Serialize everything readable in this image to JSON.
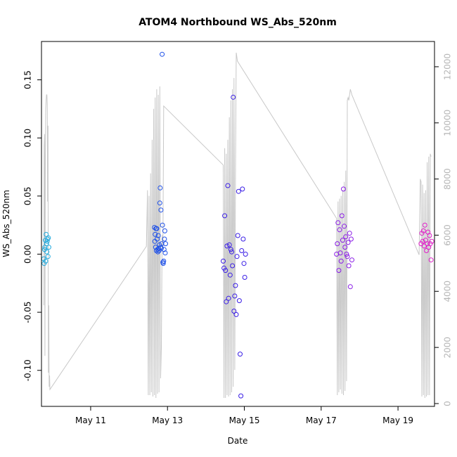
{
  "chart_data": {
    "type": "scatter",
    "title": "ATOM4 Northbound WS_Abs_520nm",
    "xlabel": "Date",
    "ylabel": "WS_Abs_520nm",
    "xlim": [
      9.72,
      19.95
    ],
    "ylim": [
      -0.131,
      0.183
    ],
    "y2lim": [
      -100,
      12900
    ],
    "x_ticks": [
      {
        "x": 11,
        "label": "May 11"
      },
      {
        "x": 13,
        "label": "May 13"
      },
      {
        "x": 15,
        "label": "May 15"
      },
      {
        "x": 17,
        "label": "May 17"
      },
      {
        "x": 19,
        "label": "May 19"
      }
    ],
    "y_ticks": [
      {
        "y": -0.1,
        "label": "-0.10"
      },
      {
        "y": -0.05,
        "label": "-0.05"
      },
      {
        "y": 0.0,
        "label": "0.00"
      },
      {
        "y": 0.05,
        "label": "0.05"
      },
      {
        "y": 0.1,
        "label": "0.10"
      },
      {
        "y": 0.15,
        "label": "0.15"
      }
    ],
    "y2_ticks": [
      {
        "y": 0,
        "label": "0"
      },
      {
        "y": 2000,
        "label": "2000"
      },
      {
        "y": 4000,
        "label": "4000"
      },
      {
        "y": 6000,
        "label": "6000"
      },
      {
        "y": 8000,
        "label": "8000"
      },
      {
        "y": 10000,
        "label": "10000"
      },
      {
        "y": 12000,
        "label": "12000"
      }
    ],
    "grid": false,
    "line_series": {
      "color": "#c8c8c8",
      "x": [
        9.78,
        9.79,
        9.8,
        9.81,
        9.82,
        9.83,
        9.84,
        9.85,
        9.86,
        9.87,
        9.88,
        9.89,
        9.9,
        9.91,
        9.92,
        9.93,
        9.94,
        12.45,
        12.48,
        12.5,
        12.52,
        12.54,
        12.56,
        12.58,
        12.6,
        12.62,
        12.64,
        12.66,
        12.68,
        12.7,
        12.72,
        12.74,
        12.76,
        12.78,
        12.8,
        12.82,
        12.84,
        12.86,
        12.88,
        12.9,
        14.45,
        14.47,
        14.49,
        14.51,
        14.53,
        14.55,
        14.57,
        14.59,
        14.61,
        14.63,
        14.65,
        14.67,
        14.69,
        14.71,
        14.73,
        14.75,
        14.77,
        14.79,
        14.8,
        14.82,
        17.4,
        17.42,
        17.44,
        17.46,
        17.48,
        17.5,
        17.52,
        17.54,
        17.56,
        17.58,
        17.6,
        17.62,
        17.64,
        17.66,
        17.68,
        17.7,
        17.72,
        17.74,
        17.76,
        17.78,
        17.8,
        19.55,
        19.58,
        19.6,
        19.62,
        19.64,
        19.66,
        19.68,
        19.7,
        19.72,
        19.74,
        19.76,
        19.78,
        19.8,
        19.82,
        19.84,
        19.86
      ],
      "y": [
        3500,
        9200,
        9600,
        1700,
        8800,
        10500,
        10800,
        11000,
        11000,
        10700,
        7200,
        9900,
        1100,
        3500,
        600,
        1000,
        500,
        5600,
        7600,
        300,
        7400,
        300,
        8200,
        400,
        9400,
        250,
        10500,
        300,
        10900,
        200,
        11200,
        350,
        11000,
        400,
        11300,
        900,
        2000,
        6000,
        5500,
        10600,
        8500,
        200,
        9100,
        200,
        8900,
        300,
        9400,
        250,
        10200,
        300,
        10800,
        400,
        11200,
        600,
        11600,
        1200,
        8000,
        12500,
        12400,
        12200,
        6600,
        300,
        7200,
        400,
        7300,
        500,
        7400,
        350,
        7600,
        300,
        7900,
        450,
        8300,
        800,
        10800,
        10900,
        10800,
        11000,
        11200,
        11100,
        11000,
        5300,
        8000,
        7900,
        250,
        7800,
        300,
        7500,
        200,
        7600,
        250,
        8600,
        300,
        8800,
        300,
        8900,
        8800
      ]
    },
    "groups": [
      {
        "color": "#22aadd",
        "x": [
          9.78,
          9.79,
          9.8,
          9.81,
          9.82,
          9.83,
          9.84,
          9.85,
          9.86,
          9.87,
          9.88,
          9.89,
          9.9,
          9.91
        ],
        "y": [
          -0.004,
          -0.008,
          0.004,
          0.006,
          0.012,
          -0.006,
          0.017,
          0.009,
          0.002,
          0.011,
          0.013,
          -0.002,
          0.014,
          0.006
        ]
      },
      {
        "color": "#1e50e8",
        "x": [
          12.66,
          12.67,
          12.68,
          12.69,
          12.7,
          12.71,
          12.72,
          12.73,
          12.74,
          12.75,
          12.76,
          12.77,
          12.78,
          12.79,
          12.8,
          12.81,
          12.82,
          12.83,
          12.84,
          12.85,
          12.86,
          12.87,
          12.88,
          12.89,
          12.9,
          12.91,
          12.92,
          12.93,
          12.94,
          12.95
        ],
        "y": [
          0.023,
          0.011,
          0.017,
          0.006,
          0.022,
          0.003,
          0.022,
          0.013,
          0.004,
          0.002,
          0.016,
          0.005,
          0.003,
          0.008,
          0.044,
          0.057,
          0.006,
          0.038,
          0.005,
          0.009,
          0.172,
          0.025,
          -0.007,
          -0.008,
          -0.006,
          0.004,
          0.013,
          0.02,
          0.001,
          0.009
        ]
      },
      {
        "color": "#3a1ee6",
        "x": [
          14.45,
          14.47,
          14.49,
          14.51,
          14.53,
          14.55,
          14.57,
          14.59,
          14.61,
          14.63,
          14.65,
          14.67,
          14.69,
          14.71,
          14.73,
          14.75,
          14.77,
          14.79,
          14.81,
          14.83,
          14.85,
          14.87,
          14.89,
          14.91,
          14.93,
          14.95,
          14.97,
          14.99,
          15.01,
          15.03
        ],
        "y": [
          -0.006,
          -0.012,
          0.033,
          -0.014,
          -0.041,
          0.007,
          0.059,
          -0.038,
          0.008,
          -0.018,
          0.004,
          0.002,
          -0.01,
          0.135,
          -0.049,
          -0.036,
          -0.027,
          -0.052,
          -0.002,
          0.016,
          0.054,
          -0.04,
          -0.086,
          -0.122,
          0.003,
          0.056,
          0.013,
          -0.008,
          -0.02,
          0.0
        ]
      },
      {
        "color": "#8a1ce6",
        "x": [
          17.4,
          17.42,
          17.44,
          17.46,
          17.48,
          17.5,
          17.52,
          17.54,
          17.56,
          17.58,
          17.6,
          17.62,
          17.64,
          17.66,
          17.68,
          17.7,
          17.72,
          17.74,
          17.76,
          17.78,
          17.8
        ],
        "y": [
          0.0,
          0.009,
          0.027,
          -0.014,
          0.021,
          0.001,
          -0.006,
          0.033,
          0.012,
          0.056,
          0.024,
          0.006,
          0.015,
          0.0,
          -0.002,
          0.01,
          -0.01,
          0.018,
          -0.028,
          0.013,
          -0.005
        ]
      },
      {
        "color": "#e01ec8",
        "x": [
          19.6,
          19.62,
          19.64,
          19.66,
          19.68,
          19.7,
          19.72,
          19.74,
          19.76,
          19.78,
          19.8,
          19.82,
          19.84,
          19.86,
          19.88
        ],
        "y": [
          0.009,
          0.018,
          0.011,
          0.02,
          0.007,
          0.025,
          0.012,
          0.003,
          0.009,
          0.019,
          0.006,
          0.016,
          0.009,
          -0.005,
          0.011
        ]
      }
    ]
  }
}
